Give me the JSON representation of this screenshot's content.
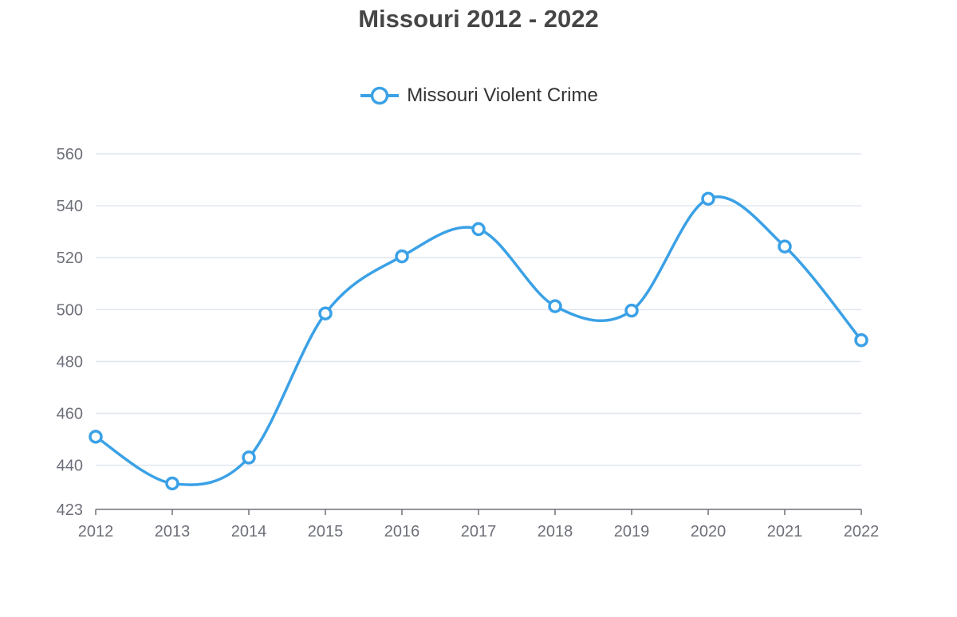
{
  "colors": {
    "series": "#3ba1e6",
    "grid": "#e0e6f1",
    "axis": "#6e7079",
    "title": "#464646"
  },
  "chart_data": {
    "type": "line",
    "title": "Missouri 2012 - 2022",
    "xlabel": "",
    "ylabel": "",
    "legend_position": "top-center",
    "grid": true,
    "smooth": true,
    "ylim": [
      423,
      560
    ],
    "y_ticks": [
      423,
      440,
      460,
      480,
      500,
      520,
      540,
      560
    ],
    "x": [
      "2012",
      "2013",
      "2014",
      "2015",
      "2016",
      "2017",
      "2018",
      "2019",
      "2020",
      "2021",
      "2022"
    ],
    "series": [
      {
        "name": "Missouri Violent Crime",
        "values": [
          451,
          433,
          443,
          498.5,
          520.5,
          531,
          501.3,
          499.6,
          542.7,
          524.3,
          488.2
        ]
      }
    ]
  }
}
